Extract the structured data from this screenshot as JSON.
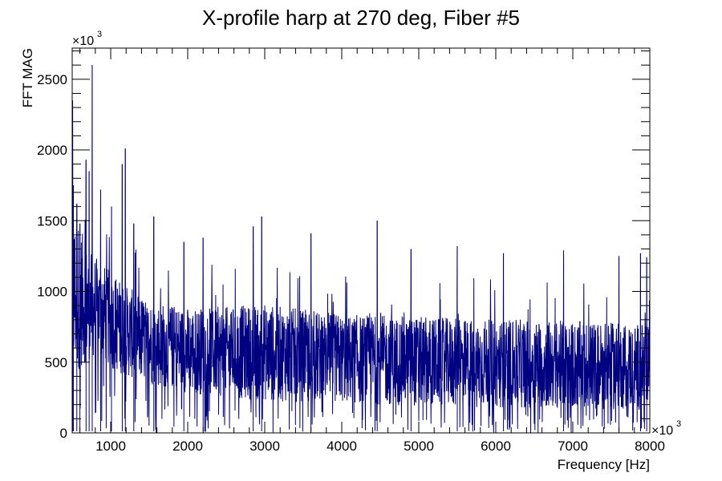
{
  "chart_data": {
    "type": "line",
    "title": "X-profile harp at 270 deg, Fiber #5",
    "xlabel": "Frequency [Hz]",
    "ylabel": "FFT MAG",
    "x_multiplier": "×10",
    "x_multiplier_exp": "3",
    "y_multiplier": "×10",
    "y_multiplier_exp": "3",
    "xlim": [
      500,
      8000
    ],
    "ylim": [
      0,
      2720
    ],
    "x_ticks": [
      1000,
      2000,
      3000,
      4000,
      5000,
      6000,
      7000,
      8000
    ],
    "y_ticks": [
      0,
      500,
      1000,
      1500,
      2000,
      2500
    ],
    "grid": false,
    "line_color": "#000080",
    "series": [
      {
        "x_range": [
          500,
          8000
        ],
        "envelope": {
          "x": [
            500,
            600,
            700,
            800,
            900,
            1000,
            1200,
            1500,
            2000,
            2500,
            3000,
            3500,
            4000,
            4500,
            5000,
            5500,
            6000,
            6500,
            7000,
            7500,
            8000
          ],
          "low": [
            450,
            520,
            560,
            580,
            560,
            500,
            440,
            380,
            320,
            290,
            270,
            260,
            250,
            240,
            230,
            225,
            220,
            215,
            210,
            205,
            200
          ],
          "high": [
            1500,
            1400,
            1250,
            1200,
            1150,
            1100,
            1000,
            900,
            850,
            850,
            870,
            830,
            800,
            790,
            780,
            770,
            760,
            760,
            750,
            740,
            730
          ]
        },
        "peaks": [
          {
            "x": 505,
            "y": 2350
          },
          {
            "x": 515,
            "y": 1750
          },
          {
            "x": 560,
            "y": 1620
          },
          {
            "x": 600,
            "y": 1480
          },
          {
            "x": 680,
            "y": 1930
          },
          {
            "x": 720,
            "y": 1850
          },
          {
            "x": 760,
            "y": 2600
          },
          {
            "x": 870,
            "y": 1720
          },
          {
            "x": 1010,
            "y": 1600
          },
          {
            "x": 1150,
            "y": 1900
          },
          {
            "x": 1190,
            "y": 2010
          },
          {
            "x": 1300,
            "y": 1480
          },
          {
            "x": 1560,
            "y": 1530
          },
          {
            "x": 1950,
            "y": 1350
          },
          {
            "x": 2200,
            "y": 1380
          },
          {
            "x": 2850,
            "y": 1460
          },
          {
            "x": 2960,
            "y": 1530
          },
          {
            "x": 3600,
            "y": 1410
          },
          {
            "x": 4460,
            "y": 1500
          },
          {
            "x": 4900,
            "y": 1300
          },
          {
            "x": 5500,
            "y": 1320
          },
          {
            "x": 6100,
            "y": 1270
          },
          {
            "x": 6880,
            "y": 1290
          },
          {
            "x": 7600,
            "y": 1250
          },
          {
            "x": 7880,
            "y": 1270
          },
          {
            "x": 7960,
            "y": 1240
          }
        ]
      }
    ]
  }
}
